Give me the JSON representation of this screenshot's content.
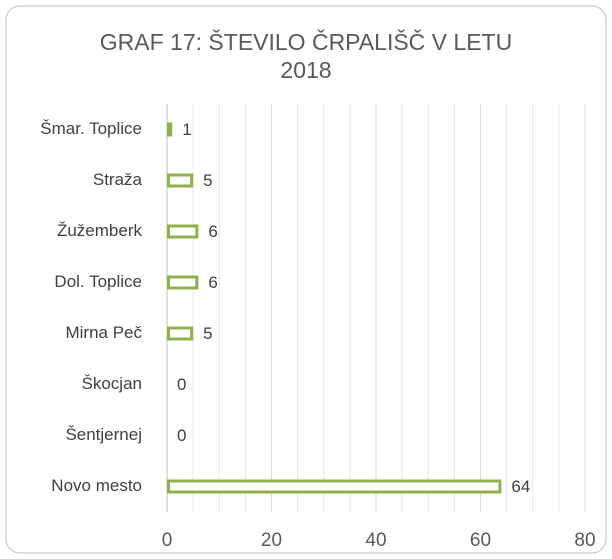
{
  "chart_data": {
    "type": "hbar",
    "title": "GRAF 17: ŠTEVILO ČRPALIŠČ V LETU 2018",
    "categories": [
      "Šmar. Toplice",
      "Straža",
      "Žužemberk",
      "Dol. Toplice",
      "Mirna Peč",
      "Škocjan",
      "Šentjernej",
      "Novo mesto"
    ],
    "values": [
      1,
      5,
      6,
      6,
      5,
      0,
      0,
      64
    ],
    "color": "#8fb14c",
    "xlim": [
      0,
      80
    ],
    "xticks": [
      0,
      20,
      40,
      60,
      80
    ],
    "xminorticks": [
      5,
      10,
      15,
      25,
      30,
      35,
      45,
      50,
      55,
      65,
      70,
      75
    ],
    "grid": true
  }
}
